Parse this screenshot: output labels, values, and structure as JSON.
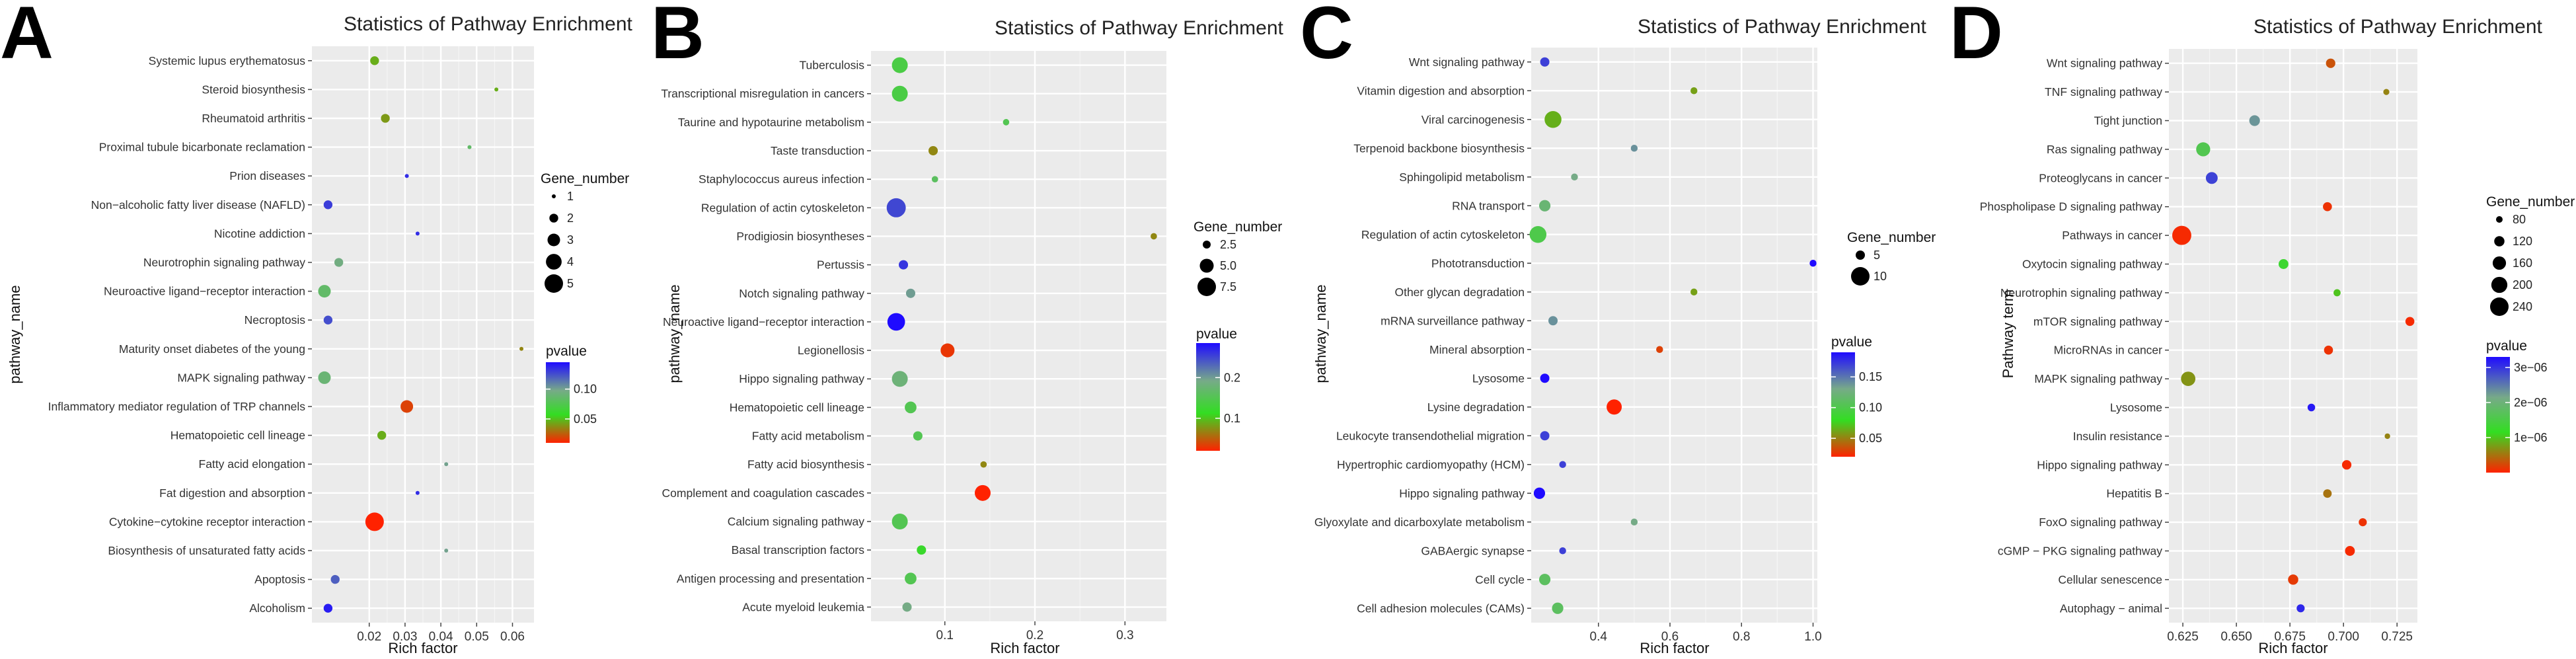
{
  "chart_data": [
    {
      "panel": "A",
      "type": "scatter",
      "title": "Statistics of Pathway Enrichment",
      "xlabel": "Rich factor",
      "ylabel": "pathway_name",
      "xlim": [
        0.004,
        0.066
      ],
      "xticks": [
        0.02,
        0.03,
        0.04,
        0.05,
        0.06
      ],
      "xtick_labels": [
        "0.02",
        "0.03",
        "0.04",
        "0.05",
        "0.06"
      ],
      "size_legend": {
        "title": "Gene_number",
        "values": [
          1,
          2,
          3,
          4,
          5
        ],
        "labels": [
          "1",
          "2",
          "3",
          "4",
          "5"
        ]
      },
      "color_legend": {
        "title": "pvalue",
        "min": 0.01,
        "max": 0.145,
        "ticks": [
          0.05,
          0.1
        ],
        "tick_labels": [
          "0.05",
          "0.10"
        ]
      },
      "points": [
        {
          "pathway": "Systemic lupus erythematosus",
          "rich_factor": 0.0215,
          "gene_number": 2,
          "pvalue": 0.045
        },
        {
          "pathway": "Steroid biosynthesis",
          "rich_factor": 0.0555,
          "gene_number": 1,
          "pvalue": 0.045
        },
        {
          "pathway": "Rheumatoid arthritis",
          "rich_factor": 0.0245,
          "gene_number": 2,
          "pvalue": 0.04
        },
        {
          "pathway": "Proximal tubule bicarbonate reclamation",
          "rich_factor": 0.048,
          "gene_number": 1,
          "pvalue": 0.085
        },
        {
          "pathway": "Prion diseases",
          "rich_factor": 0.0305,
          "gene_number": 1,
          "pvalue": 0.135
        },
        {
          "pathway": "Non−alcoholic fatty liver disease (NAFLD)",
          "rich_factor": 0.0085,
          "gene_number": 2,
          "pvalue": 0.13
        },
        {
          "pathway": "Nicotine addiction",
          "rich_factor": 0.0335,
          "gene_number": 1,
          "pvalue": 0.135
        },
        {
          "pathway": "Neurotrophin signaling pathway",
          "rich_factor": 0.0115,
          "gene_number": 2,
          "pvalue": 0.095
        },
        {
          "pathway": "Neuroactive ligand−receptor interaction",
          "rich_factor": 0.0075,
          "gene_number": 3,
          "pvalue": 0.085
        },
        {
          "pathway": "Necroptosis",
          "rich_factor": 0.0085,
          "gene_number": 2,
          "pvalue": 0.125
        },
        {
          "pathway": "Maturity onset diabetes of the young",
          "rich_factor": 0.0625,
          "gene_number": 1,
          "pvalue": 0.035
        },
        {
          "pathway": "MAPK signaling pathway",
          "rich_factor": 0.0075,
          "gene_number": 3,
          "pvalue": 0.09
        },
        {
          "pathway": "Inflammatory mediator regulation of TRP channels",
          "rich_factor": 0.0305,
          "gene_number": 3,
          "pvalue": 0.018
        },
        {
          "pathway": "Hematopoietic cell lineage",
          "rich_factor": 0.0235,
          "gene_number": 2,
          "pvalue": 0.045
        },
        {
          "pathway": "Fatty acid elongation",
          "rich_factor": 0.0415,
          "gene_number": 1,
          "pvalue": 0.1
        },
        {
          "pathway": "Fat digestion and absorption",
          "rich_factor": 0.0335,
          "gene_number": 1,
          "pvalue": 0.135
        },
        {
          "pathway": "Cytokine−cytokine receptor interaction",
          "rich_factor": 0.0215,
          "gene_number": 5,
          "pvalue": 0.01
        },
        {
          "pathway": "Biosynthesis of unsaturated fatty acids",
          "rich_factor": 0.0415,
          "gene_number": 1,
          "pvalue": 0.1
        },
        {
          "pathway": "Apoptosis",
          "rich_factor": 0.0105,
          "gene_number": 2,
          "pvalue": 0.12
        },
        {
          "pathway": "Alcoholism",
          "rich_factor": 0.0085,
          "gene_number": 2,
          "pvalue": 0.14
        }
      ]
    },
    {
      "panel": "B",
      "type": "scatter",
      "title": "Statistics of Pathway Enrichment",
      "xlabel": "Rich factor",
      "ylabel": "pathway_name",
      "xlim": [
        0.018,
        0.346
      ],
      "xticks": [
        0.1,
        0.2,
        0.3
      ],
      "xtick_labels": [
        "0.1",
        "0.2",
        "0.3"
      ],
      "size_legend": {
        "title": "Gene_number",
        "values": [
          2.5,
          5.0,
          7.5
        ],
        "labels": [
          "2.5",
          "5.0",
          "7.5"
        ]
      },
      "color_legend": {
        "title": "pvalue",
        "min": 0.02,
        "max": 0.285,
        "ticks": [
          0.1,
          0.2
        ],
        "tick_labels": [
          "0.1",
          "0.2"
        ]
      },
      "points": [
        {
          "pathway": "Tuberculosis",
          "rich_factor": 0.05,
          "gene_number": 6,
          "pvalue": 0.14
        },
        {
          "pathway": "Transcriptional misregulation in cancers",
          "rich_factor": 0.05,
          "gene_number": 6,
          "pvalue": 0.14
        },
        {
          "pathway": "Taurine and hypotaurine metabolism",
          "rich_factor": 0.168,
          "gene_number": 1,
          "pvalue": 0.15
        },
        {
          "pathway": "Taste transduction",
          "rich_factor": 0.087,
          "gene_number": 3,
          "pvalue": 0.07
        },
        {
          "pathway": "Staphylococcus aureus infection",
          "rich_factor": 0.089,
          "gene_number": 2,
          "pvalue": 0.16
        },
        {
          "pathway": "Regulation of actin cytoskeleton",
          "rich_factor": 0.046,
          "gene_number": 8,
          "pvalue": 0.25
        },
        {
          "pathway": "Prodigiosin biosyntheses",
          "rich_factor": 0.332,
          "gene_number": 1,
          "pvalue": 0.07
        },
        {
          "pathway": "Pertussis",
          "rich_factor": 0.054,
          "gene_number": 3,
          "pvalue": 0.26
        },
        {
          "pathway": "Notch signaling pathway",
          "rich_factor": 0.062,
          "gene_number": 3,
          "pvalue": 0.2
        },
        {
          "pathway": "Neuroactive ligand−receptor interaction",
          "rich_factor": 0.046,
          "gene_number": 7,
          "pvalue": 0.285
        },
        {
          "pathway": "Legionellosis",
          "rich_factor": 0.103,
          "gene_number": 5,
          "pvalue": 0.03
        },
        {
          "pathway": "Hippo signaling pathway",
          "rich_factor": 0.05,
          "gene_number": 6,
          "pvalue": 0.18
        },
        {
          "pathway": "Hematopoietic cell lineage",
          "rich_factor": 0.062,
          "gene_number": 4,
          "pvalue": 0.15
        },
        {
          "pathway": "Fatty acid metabolism",
          "rich_factor": 0.07,
          "gene_number": 3,
          "pvalue": 0.15
        },
        {
          "pathway": "Fatty acid biosynthesis",
          "rich_factor": 0.143,
          "gene_number": 2,
          "pvalue": 0.07
        },
        {
          "pathway": "Complement and coagulation cascades",
          "rich_factor": 0.142,
          "gene_number": 6,
          "pvalue": 0.02
        },
        {
          "pathway": "Calcium signaling pathway",
          "rich_factor": 0.05,
          "gene_number": 6,
          "pvalue": 0.15
        },
        {
          "pathway": "Basal transcription factors",
          "rich_factor": 0.074,
          "gene_number": 3,
          "pvalue": 0.12
        },
        {
          "pathway": "Antigen processing and presentation",
          "rich_factor": 0.062,
          "gene_number": 4,
          "pvalue": 0.15
        },
        {
          "pathway": "Acute myeloid leukemia",
          "rich_factor": 0.058,
          "gene_number": 3,
          "pvalue": 0.19
        }
      ]
    },
    {
      "panel": "C",
      "type": "scatter",
      "title": "Statistics of Pathway Enrichment",
      "xlabel": "Rich factor",
      "ylabel": "pathway_name",
      "xlim": [
        0.212,
        1.012
      ],
      "xticks": [
        0.4,
        0.6,
        0.8,
        1.0
      ],
      "xtick_labels": [
        "0.4",
        "0.6",
        "0.8",
        "1.0"
      ],
      "size_legend": {
        "title": "Gene_number",
        "values": [
          5,
          10
        ],
        "labels": [
          "5",
          "10"
        ]
      },
      "color_legend": {
        "title": "pvalue",
        "min": 0.02,
        "max": 0.19,
        "ticks": [
          0.05,
          0.1,
          0.15
        ],
        "tick_labels": [
          "0.05",
          "0.10",
          "0.15"
        ]
      },
      "points": [
        {
          "pathway": "Wnt signaling pathway",
          "rich_factor": 0.25,
          "gene_number": 5,
          "pvalue": 0.17
        },
        {
          "pathway": "Vitamin digestion and absorption",
          "rich_factor": 0.667,
          "gene_number": 2,
          "pvalue": 0.06
        },
        {
          "pathway": "Viral carcinogenesis",
          "rich_factor": 0.273,
          "gene_number": 9,
          "pvalue": 0.065
        },
        {
          "pathway": "Terpenoid backbone biosynthesis",
          "rich_factor": 0.5,
          "gene_number": 3,
          "pvalue": 0.14
        },
        {
          "pathway": "Sphingolipid metabolism",
          "rich_factor": 0.333,
          "gene_number": 4,
          "pvalue": 0.13
        },
        {
          "pathway": "RNA transport",
          "rich_factor": 0.25,
          "gene_number": 6,
          "pvalue": 0.12
        },
        {
          "pathway": "Regulation of actin cytoskeleton",
          "rich_factor": 0.231,
          "gene_number": 9,
          "pvalue": 0.1
        },
        {
          "pathway": "Phototransduction",
          "rich_factor": 1.0,
          "gene_number": 1,
          "pvalue": 0.19
        },
        {
          "pathway": "Other glycan degradation",
          "rich_factor": 0.667,
          "gene_number": 2,
          "pvalue": 0.06
        },
        {
          "pathway": "mRNA surveillance pathway",
          "rich_factor": 0.273,
          "gene_number": 5,
          "pvalue": 0.14
        },
        {
          "pathway": "Mineral absorption",
          "rich_factor": 0.571,
          "gene_number": 4,
          "pvalue": 0.03
        },
        {
          "pathway": "Lysosome",
          "rich_factor": 0.25,
          "gene_number": 5,
          "pvalue": 0.19
        },
        {
          "pathway": "Lysine degradation",
          "rich_factor": 0.444,
          "gene_number": 8,
          "pvalue": 0.02
        },
        {
          "pathway": "Leukocyte transendothelial migration",
          "rich_factor": 0.25,
          "gene_number": 5,
          "pvalue": 0.17
        },
        {
          "pathway": "Hypertrophic cardiomyopathy (HCM)",
          "rich_factor": 0.3,
          "gene_number": 4,
          "pvalue": 0.17
        },
        {
          "pathway": "Hippo signaling pathway",
          "rich_factor": 0.235,
          "gene_number": 6,
          "pvalue": 0.19
        },
        {
          "pathway": "Glyoxylate and dicarboxylate metabolism",
          "rich_factor": 0.5,
          "gene_number": 3,
          "pvalue": 0.13
        },
        {
          "pathway": "GABAergic synapse",
          "rich_factor": 0.3,
          "gene_number": 4,
          "pvalue": 0.17
        },
        {
          "pathway": "Cell cycle",
          "rich_factor": 0.25,
          "gene_number": 6,
          "pvalue": 0.11
        },
        {
          "pathway": "Cell adhesion molecules (CAMs)",
          "rich_factor": 0.286,
          "gene_number": 6,
          "pvalue": 0.11
        }
      ]
    },
    {
      "panel": "D",
      "type": "scatter",
      "title": "Statistics of Pathway Enrichment",
      "xlabel": "Rich factor",
      "ylabel": "Pathway term",
      "xlim": [
        0.6185,
        0.7345
      ],
      "xticks": [
        0.625,
        0.65,
        0.675,
        0.7,
        0.725
      ],
      "xtick_labels": [
        "0.625",
        "0.650",
        "0.675",
        "0.700",
        "0.725"
      ],
      "size_legend": {
        "title": "Gene_number",
        "values": [
          80,
          120,
          160,
          200,
          240
        ],
        "labels": [
          "80",
          "120",
          "160",
          "200",
          "240"
        ]
      },
      "color_legend": {
        "title": "pvalue",
        "min": 0.0,
        "max": 3.3e-06,
        "ticks": [
          1e-06,
          2e-06,
          3e-06
        ],
        "tick_labels": [
          "1e−06",
          "2e−06",
          "3e−06"
        ]
      },
      "points": [
        {
          "pathway": "Wnt signaling pathway",
          "rich_factor": 0.694,
          "gene_number": 110,
          "pvalue": 3e-07
        },
        {
          "pathway": "TNF signaling pathway",
          "rich_factor": 0.72,
          "gene_number": 75,
          "pvalue": 6e-07
        },
        {
          "pathway": "Tight junction",
          "rich_factor": 0.6585,
          "gene_number": 125,
          "pvalue": 2.3e-06
        },
        {
          "pathway": "Ras signaling pathway",
          "rich_factor": 0.6345,
          "gene_number": 170,
          "pvalue": 1.6e-06
        },
        {
          "pathway": "Proteoglycans in cancer",
          "rich_factor": 0.6385,
          "gene_number": 140,
          "pvalue": 2.9e-06
        },
        {
          "pathway": "Phospholipase D signaling pathway",
          "rich_factor": 0.6925,
          "gene_number": 105,
          "pvalue": 1e-07
        },
        {
          "pathway": "Pathways in cancer",
          "rich_factor": 0.6245,
          "gene_number": 250,
          "pvalue": 5e-08
        },
        {
          "pathway": "Oxytocin signaling pathway",
          "rich_factor": 0.672,
          "gene_number": 115,
          "pvalue": 1.3e-06
        },
        {
          "pathway": "Neurotrophin signaling pathway",
          "rich_factor": 0.697,
          "gene_number": 85,
          "pvalue": 1e-06
        },
        {
          "pathway": "mTOR signaling pathway",
          "rich_factor": 0.731,
          "gene_number": 105,
          "pvalue": 5e-08
        },
        {
          "pathway": "MicroRNAs in cancer",
          "rich_factor": 0.693,
          "gene_number": 105,
          "pvalue": 1e-07
        },
        {
          "pathway": "MAPK signaling pathway",
          "rich_factor": 0.6275,
          "gene_number": 175,
          "pvalue": 7e-07
        },
        {
          "pathway": "Lysosome",
          "rich_factor": 0.685,
          "gene_number": 90,
          "pvalue": 3.2e-06
        },
        {
          "pathway": "Insulin resistance",
          "rich_factor": 0.7205,
          "gene_number": 70,
          "pvalue": 6e-07
        },
        {
          "pathway": "Hippo signaling pathway",
          "rich_factor": 0.7015,
          "gene_number": 110,
          "pvalue": 5e-08
        },
        {
          "pathway": "Hepatitis B",
          "rich_factor": 0.6925,
          "gene_number": 100,
          "pvalue": 5e-07
        },
        {
          "pathway": "FoxO signaling pathway",
          "rich_factor": 0.709,
          "gene_number": 95,
          "pvalue": 1e-07
        },
        {
          "pathway": "cGMP − PKG signaling pathway",
          "rich_factor": 0.703,
          "gene_number": 115,
          "pvalue": 5e-08
        },
        {
          "pathway": "Cellular senescence",
          "rich_factor": 0.6765,
          "gene_number": 120,
          "pvalue": 1.5e-07
        },
        {
          "pathway": "Autophagy − animal",
          "rich_factor": 0.68,
          "gene_number": 95,
          "pvalue": 3.1e-06
        }
      ]
    }
  ]
}
